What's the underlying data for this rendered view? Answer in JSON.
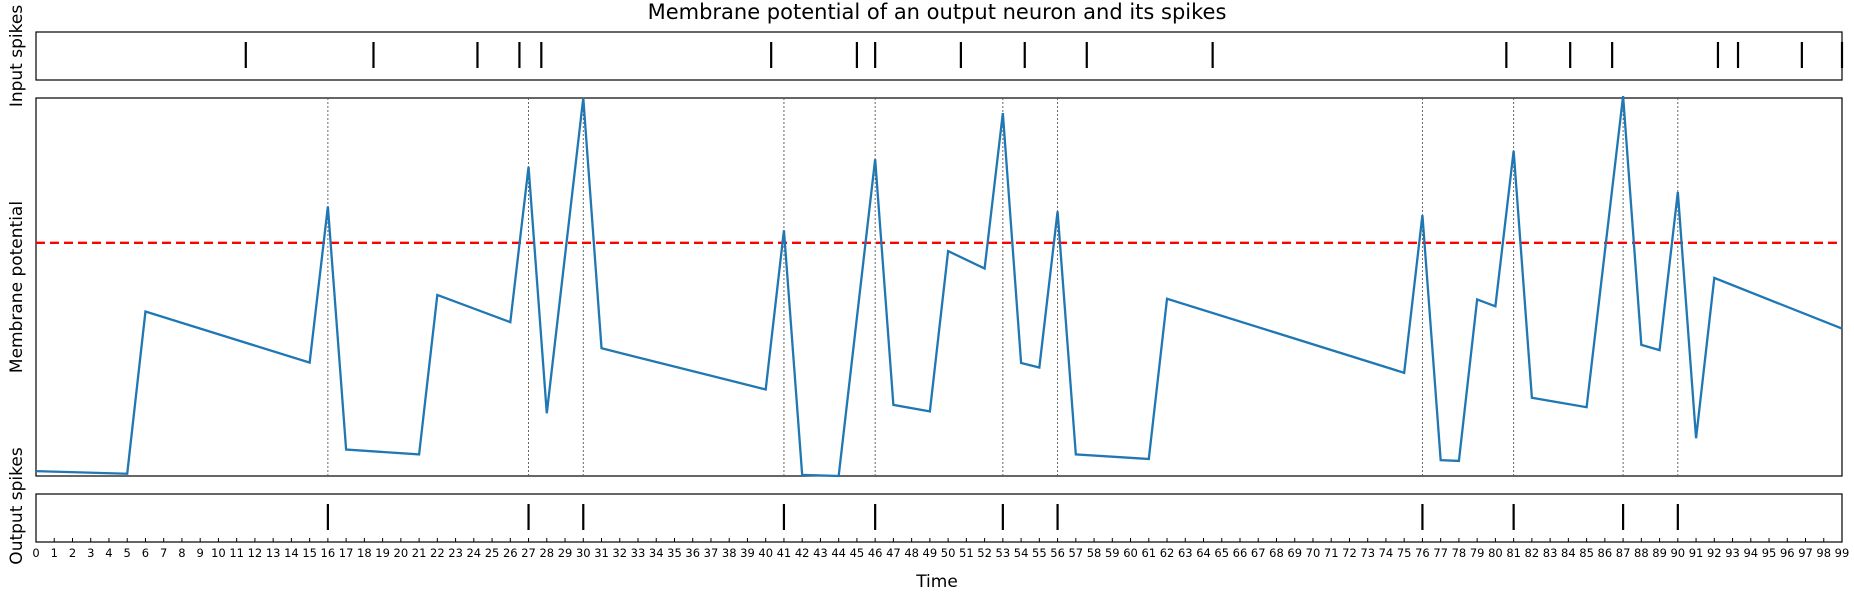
{
  "chart_data": {
    "type": "line",
    "title": "Membrane potential of an output neuron and its spikes",
    "xlabel": "Time",
    "xlim": [
      0,
      99
    ],
    "xticks": [
      0,
      1,
      2,
      3,
      4,
      5,
      6,
      7,
      8,
      9,
      10,
      11,
      12,
      13,
      14,
      15,
      16,
      17,
      18,
      19,
      20,
      21,
      22,
      23,
      24,
      25,
      26,
      27,
      28,
      29,
      30,
      31,
      32,
      33,
      34,
      35,
      36,
      37,
      38,
      39,
      40,
      41,
      42,
      43,
      44,
      45,
      46,
      47,
      48,
      49,
      50,
      51,
      52,
      53,
      54,
      55,
      56,
      57,
      58,
      59,
      60,
      61,
      62,
      63,
      64,
      65,
      66,
      67,
      68,
      69,
      70,
      71,
      72,
      73,
      74,
      75,
      76,
      77,
      78,
      79,
      80,
      81,
      82,
      83,
      84,
      85,
      86,
      87,
      88,
      89,
      90,
      91,
      92,
      93,
      94,
      95,
      96,
      97,
      98,
      99
    ],
    "panels": {
      "input_spikes": {
        "ylabel": "Input spikes",
        "spike_times": [
          11.5,
          18.5,
          24.2,
          26.5,
          27.7,
          40.3,
          45,
          46,
          50.7,
          54.2,
          57.6,
          64.5,
          80.6,
          84.1,
          86.4,
          92.2,
          93.3,
          96.8,
          99
        ]
      },
      "membrane": {
        "ylabel": "Membrane potential",
        "ylim": [
          0,
          1
        ],
        "threshold": 0.617,
        "threshold_color": "#ff0000",
        "line_color": "#1f77b4",
        "grid": false,
        "x": [
          0,
          5,
          6,
          15,
          16,
          17,
          21,
          22,
          26,
          27,
          28,
          30,
          31,
          40,
          41,
          42,
          44,
          46,
          47,
          49,
          50,
          52,
          53,
          54,
          55,
          56,
          57,
          61,
          62,
          75,
          76,
          77,
          78,
          79,
          80,
          81,
          82,
          85,
          87,
          88,
          89,
          90,
          91,
          92,
          99
        ],
        "y": [
          0.013,
          0.006,
          0.435,
          0.3,
          0.713,
          0.07,
          0.057,
          0.479,
          0.407,
          0.818,
          0.166,
          1.0,
          0.338,
          0.229,
          0.65,
          0.003,
          0.0,
          0.838,
          0.188,
          0.171,
          0.595,
          0.549,
          0.96,
          0.299,
          0.287,
          0.7,
          0.057,
          0.045,
          0.469,
          0.273,
          0.69,
          0.042,
          0.04,
          0.467,
          0.449,
          0.86,
          0.207,
          0.182,
          1.005,
          0.347,
          0.333,
          0.751,
          0.1,
          0.524,
          0.39
        ]
      },
      "output_spikes": {
        "ylabel": "Output spikes",
        "spike_times": [
          16,
          27,
          30,
          41,
          46,
          53,
          56,
          76,
          81,
          87,
          90
        ]
      }
    }
  }
}
